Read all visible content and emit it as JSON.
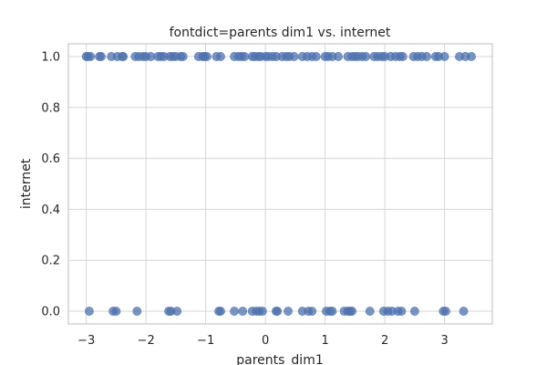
{
  "chart_data": {
    "type": "scatter",
    "title": "fontdict=parents dim1 vs. internet",
    "xlabel": "parents_dim1",
    "ylabel": "internet",
    "xlim": [
      -3.3,
      3.8
    ],
    "ylim": [
      -0.05,
      1.05
    ],
    "xticks": [
      -3,
      -2,
      -1,
      0,
      1,
      2,
      3
    ],
    "xtick_labels": [
      "−3",
      "−2",
      "−1",
      "0",
      "1",
      "2",
      "3"
    ],
    "yticks": [
      0.0,
      0.2,
      0.4,
      0.6,
      0.8,
      1.0
    ],
    "ytick_labels": [
      "0.0",
      "0.2",
      "0.4",
      "0.6",
      "0.8",
      "1.0"
    ],
    "grid": true,
    "legend": "none",
    "point_color": "#4c72b0",
    "series": [
      {
        "x": [
          -3.0,
          -2.97,
          -2.93,
          -2.78,
          -2.75,
          -2.58,
          -2.48,
          -2.4,
          -2.38,
          -2.18,
          -2.12,
          -2.05,
          -2.0,
          -1.92,
          -1.8,
          -1.75,
          -1.7,
          -1.6,
          -1.55,
          -1.5,
          -1.42,
          -1.38,
          -1.12,
          -1.05,
          -1.02,
          -0.98,
          -0.82,
          -0.75,
          -0.52,
          -0.45,
          -0.4,
          -0.35,
          -0.22,
          -0.18,
          -0.12,
          -0.08,
          0.0,
          0.05,
          0.12,
          0.18,
          0.28,
          0.35,
          0.4,
          0.48,
          0.62,
          0.7,
          0.78,
          0.85,
          1.0,
          1.05,
          1.12,
          1.22,
          1.38,
          1.45,
          1.5,
          1.55,
          1.62,
          1.68,
          1.82,
          1.88,
          1.95,
          2.0,
          2.1,
          2.18,
          2.25,
          2.3,
          2.48,
          2.55,
          2.62,
          2.7,
          2.85,
          2.9,
          3.0,
          3.25,
          3.35,
          3.45
        ],
        "y": [
          1,
          1,
          1,
          1,
          1,
          1,
          1,
          1,
          1,
          1,
          1,
          1,
          1,
          1,
          1,
          1,
          1,
          1,
          1,
          1,
          1,
          1,
          1,
          1,
          1,
          1,
          1,
          1,
          1,
          1,
          1,
          1,
          1,
          1,
          1,
          1,
          1,
          1,
          1,
          1,
          1,
          1,
          1,
          1,
          1,
          1,
          1,
          1,
          1,
          1,
          1,
          1,
          1,
          1,
          1,
          1,
          1,
          1,
          1,
          1,
          1,
          1,
          1,
          1,
          1,
          1,
          1,
          1,
          1,
          1,
          1,
          1,
          1,
          1,
          1,
          1
        ]
      },
      {
        "x": [
          -2.95,
          -2.55,
          -2.5,
          -2.15,
          -1.62,
          -1.58,
          -1.48,
          -0.78,
          -0.75,
          -0.52,
          -0.38,
          -0.22,
          -0.15,
          -0.1,
          -0.05,
          0.18,
          0.2,
          0.38,
          0.62,
          0.72,
          0.78,
          1.02,
          1.08,
          1.12,
          1.32,
          1.38,
          1.42,
          1.45,
          1.75,
          1.98,
          2.05,
          2.12,
          2.22,
          2.28,
          2.5,
          2.98,
          3.02,
          3.32
        ],
        "y": [
          0,
          0,
          0,
          0,
          0,
          0,
          0,
          0,
          0,
          0,
          0,
          0,
          0,
          0,
          0,
          0,
          0,
          0,
          0,
          0,
          0,
          0,
          0,
          0,
          0,
          0,
          0,
          0,
          0,
          0,
          0,
          0,
          0,
          0,
          0,
          0,
          0,
          0
        ]
      }
    ]
  }
}
